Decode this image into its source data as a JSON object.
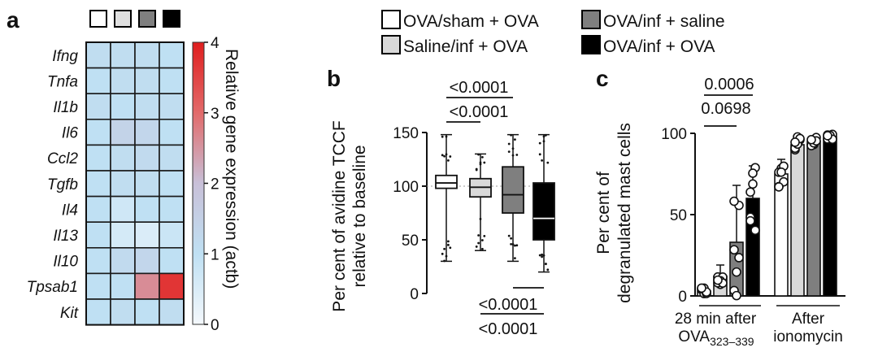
{
  "panels": {
    "a_label": "a",
    "b_label": "b",
    "c_label": "c"
  },
  "legend": {
    "items": [
      {
        "label": "OVA/sham + OVA",
        "color": "#ffffff"
      },
      {
        "label": "Saline/inf + OVA",
        "color": "#d9d9d9"
      },
      {
        "label": "OVA/inf + saline",
        "color": "#7f7f7f"
      },
      {
        "label": "OVA/inf + OVA",
        "color": "#000000"
      }
    ]
  },
  "chart_data": [
    {
      "type": "heatmap",
      "panel": "a",
      "rows": [
        "Ifng",
        "Tnfa",
        "Il1b",
        "Il6",
        "Ccl2",
        "Tgfb",
        "Il4",
        "Il13",
        "Il10",
        "Tpsab1",
        "Kit"
      ],
      "columns": [
        "OVA/sham + OVA",
        "Saline/inf + OVA",
        "OVA/inf + saline",
        "OVA/inf + OVA"
      ],
      "column_colors": [
        "#ffffff",
        "#e0e0e0",
        "#7f7f7f",
        "#000000"
      ],
      "values": [
        [
          1.1,
          1.1,
          1.1,
          1.0
        ],
        [
          1.0,
          1.1,
          1.1,
          1.0
        ],
        [
          1.1,
          1.0,
          1.1,
          1.1
        ],
        [
          1.0,
          1.4,
          1.3,
          1.0
        ],
        [
          1.0,
          1.1,
          1.2,
          1.1
        ],
        [
          1.0,
          1.1,
          1.1,
          1.0
        ],
        [
          1.0,
          0.7,
          1.0,
          1.0
        ],
        [
          1.0,
          0.6,
          0.5,
          0.8
        ],
        [
          1.0,
          1.2,
          1.3,
          1.0
        ],
        [
          1.0,
          1.0,
          2.6,
          3.7
        ],
        [
          1.0,
          1.1,
          1.0,
          1.1
        ]
      ],
      "colorbar": {
        "label": "Relative gene expression (actb)",
        "ticks": [
          "0",
          "1",
          "2",
          "3",
          "4"
        ],
        "range": [
          0,
          4
        ]
      }
    },
    {
      "type": "box",
      "panel": "b",
      "ylabel_line1": "Per cent of avidine TCCF",
      "ylabel_line2": "relative to baseline",
      "yticks": [
        "0",
        "50",
        "100",
        "150"
      ],
      "ylim": [
        0,
        150
      ],
      "reference_line": 100,
      "series": [
        {
          "name": "OVA/sham + OVA",
          "color": "#ffffff",
          "min": 30,
          "q1": 98,
          "median": 103,
          "q3": 110,
          "max": 148
        },
        {
          "name": "Saline/inf + OVA",
          "color": "#d9d9d9",
          "min": 40,
          "q1": 90,
          "median": 99,
          "q3": 107,
          "max": 130
        },
        {
          "name": "OVA/inf + saline",
          "color": "#7f7f7f",
          "min": 30,
          "q1": 75,
          "median": 92,
          "q3": 118,
          "max": 148
        },
        {
          "name": "OVA/inf + OVA",
          "color": "#000000",
          "min": 20,
          "q1": 50,
          "median": 70,
          "q3": 103,
          "max": 148
        }
      ],
      "annotations_top": [
        "<0.0001",
        "<0.0001"
      ],
      "annotations_bottom": [
        "<0.0001",
        "<0.0001"
      ]
    },
    {
      "type": "bar",
      "panel": "c",
      "ylabel_line1": "Per cent of",
      "ylabel_line2": "degranulated mast cells",
      "yticks": [
        "0",
        "50",
        "100"
      ],
      "ylim": [
        0,
        100
      ],
      "group_labels": [
        "28 min after OVA323–339",
        "After ionomycin"
      ],
      "group_label_lines": [
        [
          "28 min after",
          "OVA",
          "323–339"
        ],
        [
          "After",
          "ionomycin"
        ]
      ],
      "series": [
        {
          "name": "OVA/sham + OVA",
          "color": "#ffffff",
          "values": [
            3,
            75
          ],
          "errors": [
            2,
            9
          ]
        },
        {
          "name": "Saline/inf + OVA",
          "color": "#d9d9d9",
          "values": [
            12,
            93
          ],
          "errors": [
            7,
            5
          ]
        },
        {
          "name": "OVA/inf + saline",
          "color": "#7f7f7f",
          "values": [
            33,
            95
          ],
          "errors": [
            35,
            3
          ]
        },
        {
          "name": "OVA/inf + OVA",
          "color": "#000000",
          "values": [
            60,
            98
          ],
          "errors": [
            20,
            2
          ]
        }
      ],
      "annotations": [
        "0.0006",
        "0.0698"
      ]
    }
  ]
}
